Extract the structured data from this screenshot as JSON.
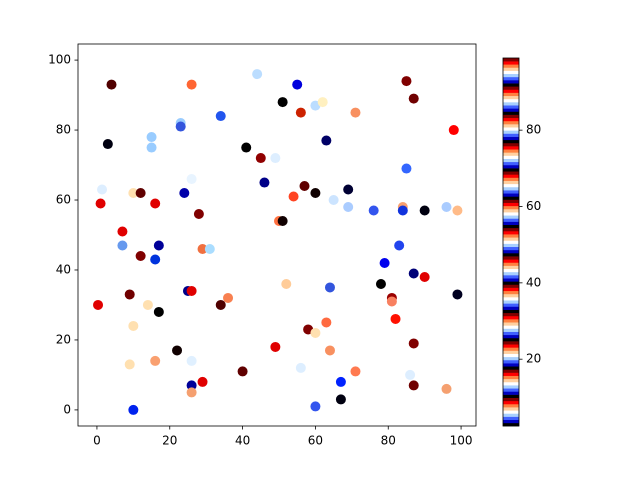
{
  "chart_data": {
    "type": "scatter",
    "x": [
      0.3,
      1,
      1.4,
      4,
      3,
      7,
      7,
      9,
      10,
      9,
      10,
      10,
      12,
      12,
      14,
      15,
      15,
      16,
      16,
      17,
      17,
      16,
      23,
      23,
      24,
      26,
      28,
      25,
      26,
      22,
      26,
      26,
      26,
      26,
      29,
      29,
      31,
      34,
      34,
      36,
      40,
      41,
      44,
      45,
      46,
      49,
      49,
      50,
      51,
      51,
      52,
      54,
      55,
      56,
      56,
      57,
      58,
      60,
      60,
      60,
      60,
      62,
      63,
      63,
      64,
      64,
      65,
      67,
      67,
      69,
      69,
      71,
      71,
      76,
      78,
      79,
      81,
      81,
      82,
      83,
      84,
      84,
      85,
      85,
      86,
      87,
      87,
      87,
      87,
      90,
      90,
      98,
      96,
      99,
      96,
      99
    ],
    "y": [
      30,
      59,
      63,
      93,
      76,
      51,
      47,
      33,
      24,
      13,
      0,
      62,
      62,
      44,
      30,
      78,
      75,
      59,
      43,
      47,
      28,
      14,
      82,
      81,
      62,
      66,
      56,
      34,
      34,
      17,
      7,
      5,
      14,
      93,
      8,
      46,
      46,
      84,
      30,
      32,
      11,
      75,
      96,
      72,
      65,
      72,
      18,
      54,
      54,
      88,
      36,
      61,
      93,
      12,
      85,
      64,
      23,
      22,
      62,
      1,
      87,
      88,
      77,
      25,
      35,
      17,
      60,
      3,
      8,
      63,
      58,
      85,
      11,
      57,
      36,
      42,
      32,
      31,
      26,
      47,
      58,
      57,
      69,
      94,
      10,
      89,
      39,
      19,
      7,
      57,
      38,
      80,
      58,
      57,
      6,
      33
    ],
    "colors": [
      "#e00000",
      "#e00000",
      "#ddeeff",
      "#500000",
      "#000010",
      "#e00000",
      "#6699ee",
      "#700000",
      "#ffe0b0",
      "#ffe0b0",
      "#0022ee",
      "#ffe0b0",
      "#600000",
      "#800000",
      "#ffe0b0",
      "#99ccff",
      "#99ccff",
      "#e00000",
      "#0033dd",
      "#000099",
      "#000000",
      "#f9a070",
      "#99ccff",
      "#3355dd",
      "#0000aa",
      "#e8f4ff",
      "#800000",
      "#000088",
      "#e00000",
      "#100000",
      "#000099",
      "#f5a070",
      "#e0f0ff",
      "#ff6633",
      "#e00000",
      "#f07040",
      "#aaddff",
      "#2255ee",
      "#500000",
      "#f88050",
      "#600000",
      "#000000",
      "#bbddff",
      "#900000",
      "#000088",
      "#ddeeff",
      "#e00000",
      "#ff7040",
      "#100000",
      "#000000",
      "#ffcc99",
      "#ff4422",
      "#0000dd",
      "#ddeeff",
      "#cc2200",
      "#600000",
      "#800000",
      "#ffe0b0",
      "#100000",
      "#3355ee",
      "#bbddff",
      "#fff0c0",
      "#000066",
      "#ff6a40",
      "#3355dd",
      "#f89060",
      "#cce4ff",
      "#000010",
      "#0022ff",
      "#000033",
      "#aaccff",
      "#f89060",
      "#ff7a50",
      "#3355ee",
      "#000000",
      "#0000ee",
      "#990000",
      "#f88060",
      "#ff1000",
      "#2244ee",
      "#f8a070",
      "#1133dd",
      "#3366ff",
      "#800000",
      "#ddeeff",
      "#700000",
      "#000077",
      "#800000",
      "#700000",
      "#000010",
      "#e00000",
      "#ff0000",
      "#aaccff",
      "#ffbb88",
      "#f5a070",
      "#000020"
    ],
    "xlim": [
      -5.2,
      104.1
    ],
    "ylim": [
      -4.6,
      104.6
    ],
    "xticks": [
      0,
      20,
      40,
      60,
      80,
      100
    ],
    "yticks": [
      0,
      20,
      40,
      60,
      80,
      100
    ],
    "colorbar": {
      "lim": [
        2.5,
        98.9
      ],
      "ticks": [
        20,
        40,
        60,
        80
      ],
      "colormap": [
        "#000000",
        "#0000c0",
        "#4060ff",
        "#a8d0ff",
        "#ffffff",
        "#ffd0a0",
        "#ff8040",
        "#ff0000",
        "#800000"
      ]
    }
  }
}
